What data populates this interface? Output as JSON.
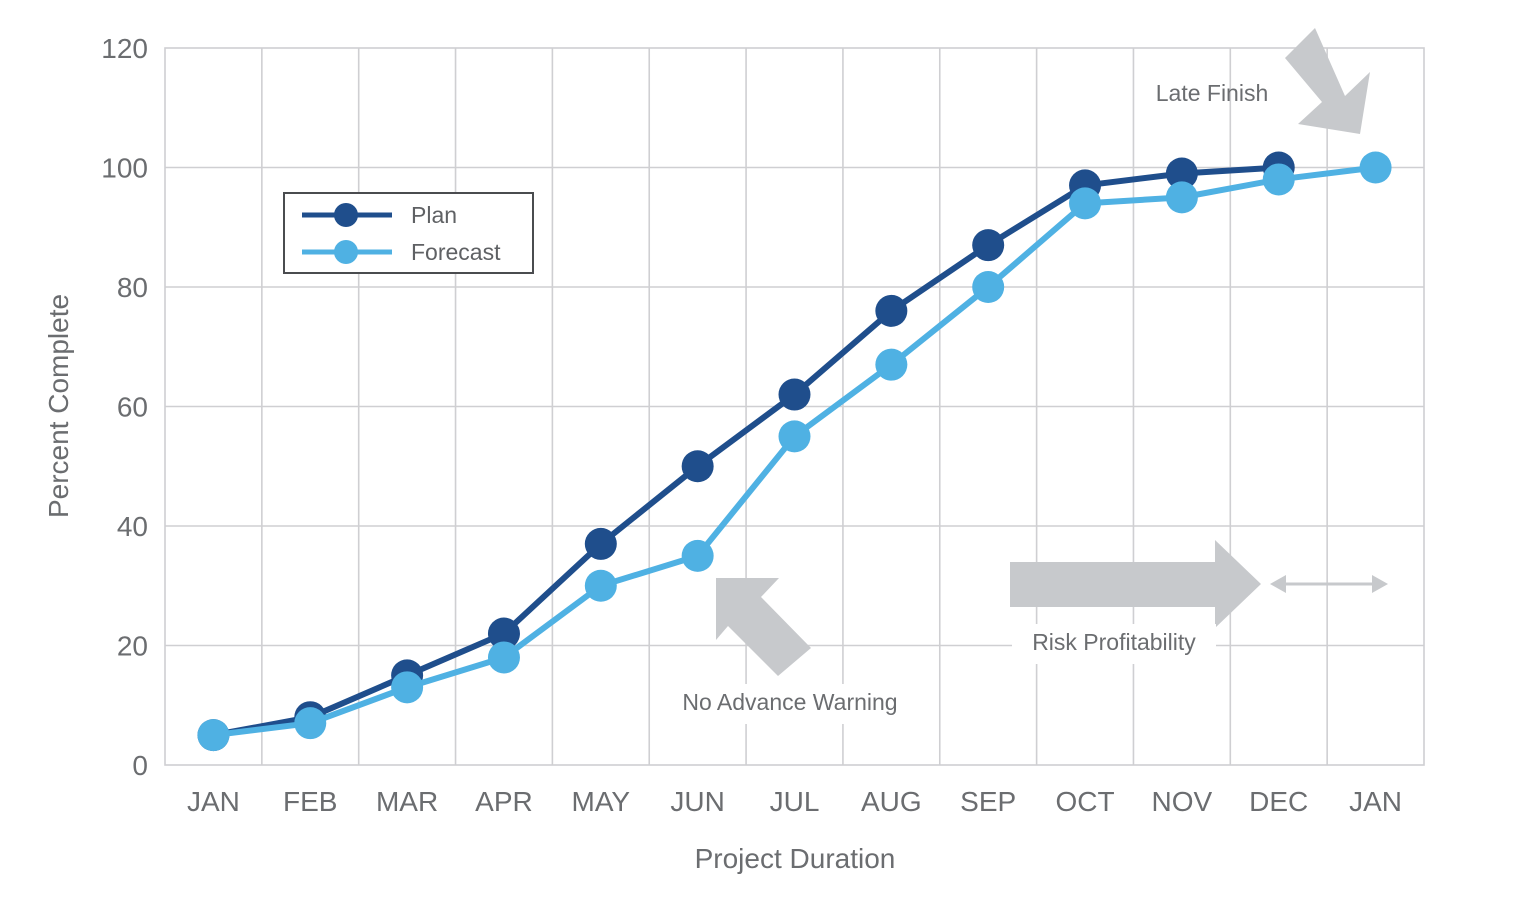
{
  "chart_data": {
    "type": "line",
    "categories": [
      "JAN",
      "FEB",
      "MAR",
      "APR",
      "MAY",
      "JUN",
      "JUL",
      "AUG",
      "SEP",
      "OCT",
      "NOV",
      "DEC",
      "JAN"
    ],
    "series": [
      {
        "name": "Plan",
        "color": "#1f4e8c",
        "values": [
          5,
          8,
          15,
          22,
          37,
          50,
          62,
          76,
          87,
          97,
          99,
          100,
          null
        ]
      },
      {
        "name": "Forecast",
        "color": "#4fb1e3",
        "values": [
          5,
          7,
          13,
          18,
          30,
          35,
          55,
          67,
          80,
          94,
          95,
          98,
          100
        ]
      }
    ],
    "xlabel": "Project Duration",
    "ylabel": "Percent Complete",
    "ylim": [
      0,
      120
    ],
    "yticks": [
      0,
      20,
      40,
      60,
      80,
      100,
      120
    ],
    "grid": true,
    "legend_position": "top-left",
    "annotations": [
      {
        "text": "Late Finish"
      },
      {
        "text": "No Advance Warning"
      },
      {
        "text": "Risk Profitability"
      }
    ]
  }
}
